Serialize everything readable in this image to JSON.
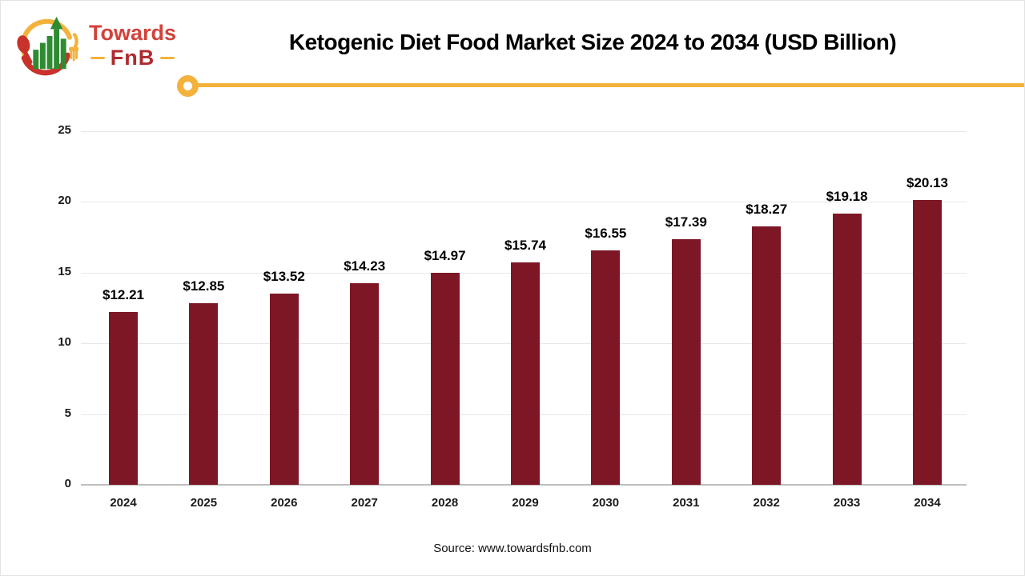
{
  "header": {
    "logo": {
      "brand_top": "Towards",
      "brand_bottom": "FnB"
    },
    "title": "Ketogenic Diet Food Market Size 2024 to 2034 (USD Billion)"
  },
  "colors": {
    "bar": "#7d1726",
    "accent_yellow": "#f3b23c",
    "brand_red": "#d2423a",
    "brand_dark_red": "#b02a2e",
    "logo_green": "#2e8b31"
  },
  "chart_data": {
    "type": "bar",
    "title": "Ketogenic Diet Food Market Size 2024 to 2034 (USD Billion)",
    "categories": [
      "2024",
      "2025",
      "2026",
      "2027",
      "2028",
      "2029",
      "2030",
      "2031",
      "2032",
      "2033",
      "2034"
    ],
    "values": [
      12.21,
      12.85,
      13.52,
      14.23,
      14.97,
      15.74,
      16.55,
      17.39,
      18.27,
      19.18,
      20.13
    ],
    "value_labels": [
      "$12.21",
      "$12.85",
      "$13.52",
      "$14.23",
      "$14.97",
      "$15.74",
      "$16.55",
      "$17.39",
      "$18.27",
      "$19.18",
      "$20.13"
    ],
    "xlabel": "",
    "ylabel": "",
    "y_ticks": [
      0,
      5,
      10,
      15,
      20,
      25
    ],
    "ylim": [
      0,
      25
    ],
    "grid": true,
    "legend": false
  },
  "footer": {
    "source": "Source: www.towardsfnb.com"
  }
}
